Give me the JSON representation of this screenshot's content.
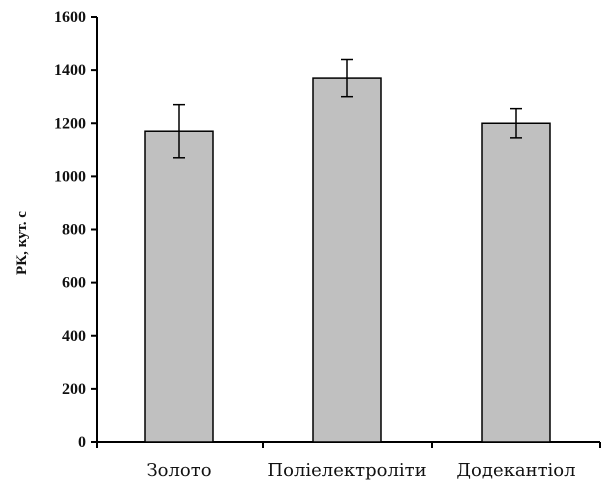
{
  "chart_data": {
    "type": "bar",
    "title": "",
    "xlabel": "",
    "ylabel": "РК, кут. с",
    "categories": [
      "Золото",
      "Поліелектроліти",
      "Додекантіол"
    ],
    "values": [
      1170,
      1370,
      1200
    ],
    "error": [
      100,
      70,
      55
    ],
    "ylim": [
      0,
      1600
    ],
    "yticks": [
      0,
      200,
      400,
      600,
      800,
      1000,
      1200,
      1400,
      1600
    ],
    "grid": false,
    "legend": "none",
    "bar_color": "#c0c0c0",
    "bar_edge_color": "#000000"
  }
}
